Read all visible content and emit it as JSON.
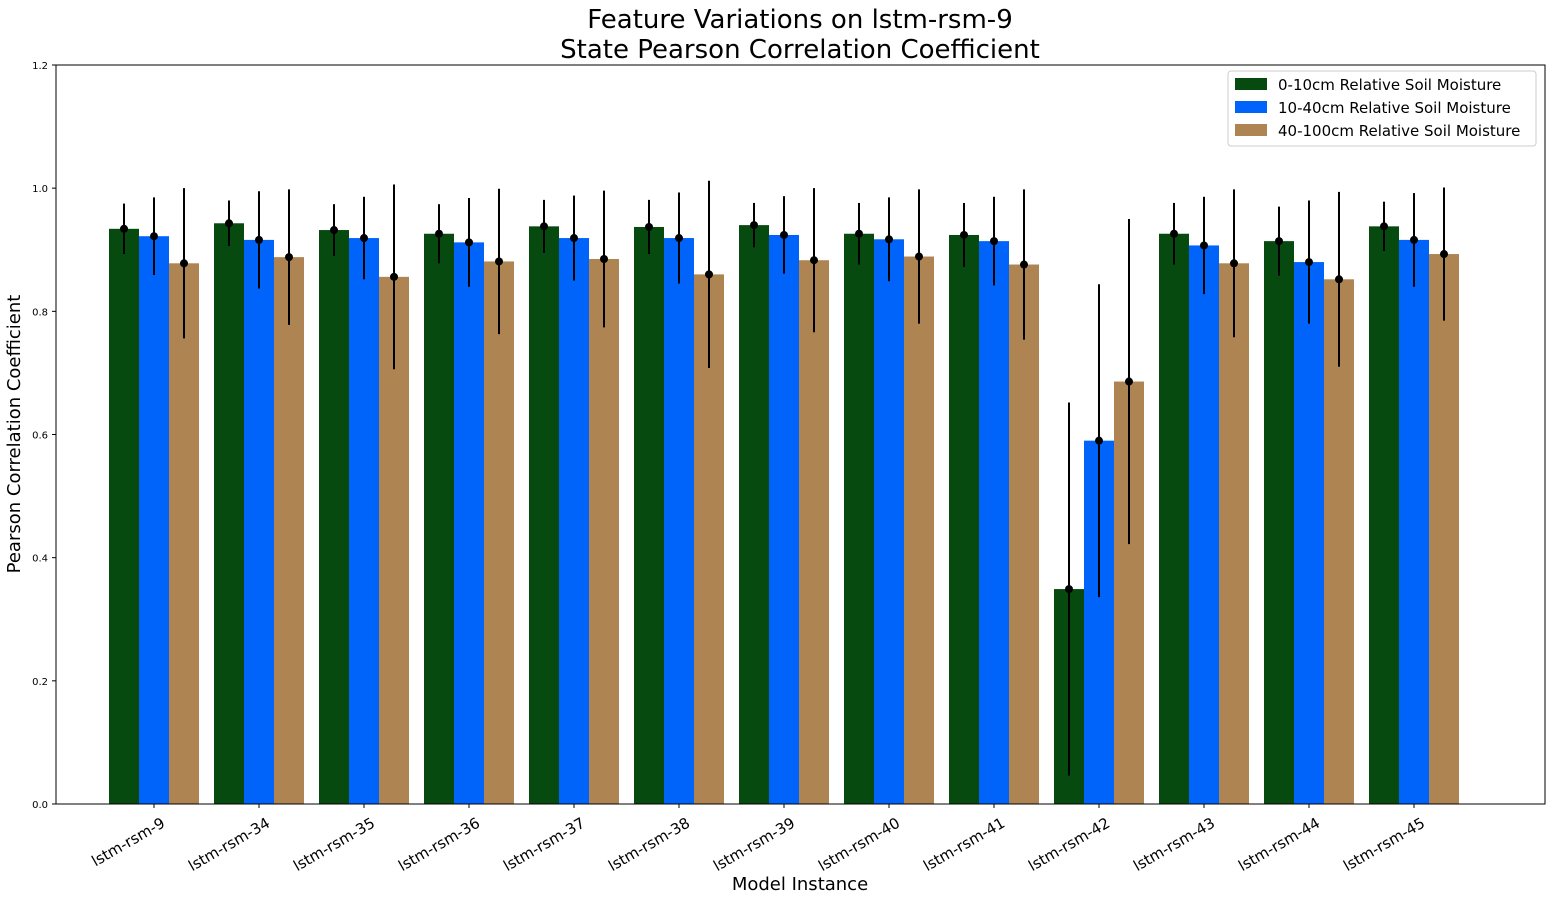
{
  "chart_data": {
    "type": "bar",
    "title": "Feature Variations on lstm-rsm-9",
    "subtitle": "State Pearson Correlation Coefficient",
    "xlabel": "Model Instance",
    "ylabel": "Pearson Correlation Coefficient",
    "ylim": [
      0,
      1.2
    ],
    "yticks": [
      "0.0",
      "0.2",
      "0.4",
      "0.6",
      "0.8",
      "1.0",
      "1.2"
    ],
    "grid": false,
    "legend_position": "top-right",
    "categories": [
      "lstm-rsm-9",
      "lstm-rsm-34",
      "lstm-rsm-35",
      "lstm-rsm-36",
      "lstm-rsm-37",
      "lstm-rsm-38",
      "lstm-rsm-39",
      "lstm-rsm-40",
      "lstm-rsm-41",
      "lstm-rsm-42",
      "lstm-rsm-43",
      "lstm-rsm-44",
      "lstm-rsm-45"
    ],
    "series": [
      {
        "name": "0-10cm Relative Soil Moisture",
        "color": "#074a0f",
        "values": [
          0.934,
          0.943,
          0.932,
          0.926,
          0.938,
          0.937,
          0.94,
          0.926,
          0.924,
          0.349,
          0.926,
          0.914,
          0.938
        ],
        "error": [
          0.041,
          0.037,
          0.042,
          0.048,
          0.043,
          0.044,
          0.036,
          0.05,
          0.052,
          0.303,
          0.05,
          0.056,
          0.04
        ]
      },
      {
        "name": "10-40cm Relative Soil Moisture",
        "color": "#0064fb",
        "values": [
          0.922,
          0.916,
          0.919,
          0.912,
          0.919,
          0.919,
          0.924,
          0.917,
          0.914,
          0.59,
          0.907,
          0.88,
          0.916
        ],
        "error": [
          0.063,
          0.079,
          0.067,
          0.072,
          0.069,
          0.074,
          0.063,
          0.068,
          0.072,
          0.254,
          0.079,
          0.1,
          0.076
        ]
      },
      {
        "name": "40-100cm Relative Soil Moisture",
        "color": "#ae8452",
        "values": [
          0.878,
          0.888,
          0.856,
          0.881,
          0.885,
          0.86,
          0.883,
          0.889,
          0.876,
          0.686,
          0.878,
          0.852,
          0.893
        ],
        "error": [
          0.122,
          0.11,
          0.15,
          0.118,
          0.111,
          0.152,
          0.117,
          0.109,
          0.122,
          0.264,
          0.12,
          0.142,
          0.108
        ]
      }
    ]
  }
}
